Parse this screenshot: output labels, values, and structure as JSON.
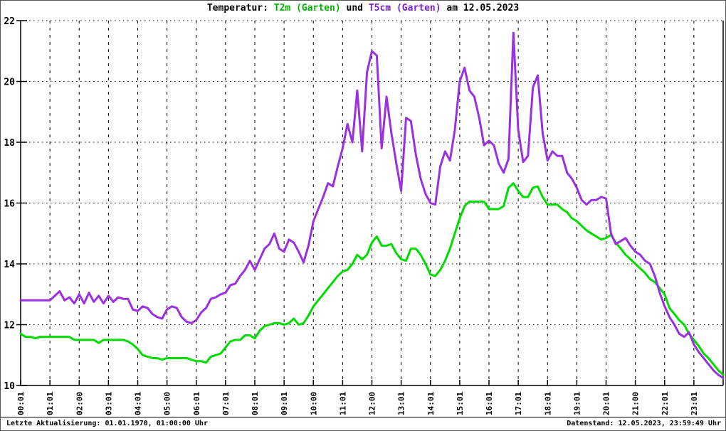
{
  "title": {
    "prefix": "Temperatur: ",
    "series1_label": "T2m (Garten)",
    "mid": " und ",
    "series2_label": "T5cm (Garten)",
    "suffix": " am 12.05.2023"
  },
  "footer": {
    "left": "Letzte Aktualisierung: 01.01.1970, 01:00:00 Uhr",
    "right": "Datenstand: 12.05.2023, 23:59:49 Uhr"
  },
  "colors": {
    "t2m_line": "#00dc00",
    "t5cm_line": "#9a30e0",
    "t2m_title": "#00b400",
    "t5cm_title": "#7a1fd2",
    "axis": "#000000",
    "grid": "#000000",
    "background": "#ffffff"
  },
  "chart_data": {
    "type": "line",
    "title": "Temperatur: T2m (Garten) und T5cm (Garten) am 12.05.2023",
    "date": "12.05.2023",
    "xlabel": "",
    "ylabel": "",
    "ylim": [
      10,
      22
    ],
    "yticks": [
      10,
      12,
      14,
      16,
      18,
      20,
      22
    ],
    "grid": "on",
    "legend_position": "in-title",
    "x_start": "00:00",
    "x_interval_minutes": 10,
    "x_span_hours": 24,
    "xlabels": [
      "00:01",
      "01:01",
      "02:00",
      "03:01",
      "04:01",
      "05:00",
      "06:01",
      "07:01",
      "08:01",
      "09:01",
      "10:00",
      "11:01",
      "12:00",
      "13:01",
      "14:01",
      "15:01",
      "16:01",
      "17:01",
      "18:01",
      "19:01",
      "20:01",
      "21:00",
      "22:01",
      "23:01"
    ],
    "series": [
      {
        "name": "T2m (Garten)",
        "color": "#00dc00",
        "values": [
          11.7,
          11.6,
          11.6,
          11.55,
          11.6,
          11.6,
          11.6,
          11.6,
          11.6,
          11.6,
          11.6,
          11.5,
          11.5,
          11.5,
          11.5,
          11.5,
          11.4,
          11.5,
          11.5,
          11.5,
          11.5,
          11.5,
          11.45,
          11.35,
          11.2,
          11.0,
          10.95,
          10.9,
          10.9,
          10.85,
          10.9,
          10.9,
          10.9,
          10.9,
          10.9,
          10.85,
          10.8,
          10.8,
          10.75,
          10.95,
          11.0,
          11.05,
          11.25,
          11.45,
          11.5,
          11.5,
          11.65,
          11.65,
          11.55,
          11.8,
          11.95,
          12.0,
          12.05,
          12.05,
          12.0,
          12.05,
          12.2,
          12.0,
          12.05,
          12.3,
          12.6,
          12.8,
          13.0,
          13.2,
          13.4,
          13.6,
          13.75,
          13.8,
          14.0,
          14.3,
          14.15,
          14.3,
          14.7,
          14.9,
          14.6,
          14.6,
          14.65,
          14.35,
          14.15,
          14.1,
          14.5,
          14.5,
          14.3,
          14.0,
          13.65,
          13.6,
          13.8,
          14.1,
          14.5,
          15.0,
          15.5,
          15.9,
          16.05,
          16.05,
          16.05,
          16.05,
          15.8,
          15.8,
          15.8,
          15.9,
          16.5,
          16.65,
          16.4,
          16.2,
          16.2,
          16.5,
          16.55,
          16.2,
          15.95,
          15.95,
          15.95,
          15.8,
          15.7,
          15.5,
          15.4,
          15.25,
          15.1,
          15.0,
          14.9,
          14.8,
          14.85,
          14.95,
          14.7,
          14.5,
          14.3,
          14.15,
          14.0,
          13.85,
          13.7,
          13.5,
          13.4,
          13.2,
          13.0,
          12.55,
          12.35,
          12.15,
          12.0,
          11.7,
          11.5,
          11.3,
          11.05,
          10.9,
          10.7,
          10.5,
          10.35
        ]
      },
      {
        "name": "T5cm (Garten)",
        "color": "#9a30e0",
        "values": [
          12.8,
          12.8,
          12.8,
          12.8,
          12.8,
          12.8,
          12.8,
          12.95,
          13.1,
          12.8,
          12.9,
          12.7,
          13.0,
          12.7,
          13.05,
          12.75,
          12.95,
          12.7,
          12.95,
          12.75,
          12.9,
          12.85,
          12.85,
          12.5,
          12.45,
          12.6,
          12.55,
          12.35,
          12.25,
          12.2,
          12.5,
          12.6,
          12.55,
          12.25,
          12.1,
          12.05,
          12.15,
          12.4,
          12.55,
          12.85,
          12.9,
          13.0,
          13.05,
          13.3,
          13.35,
          13.6,
          13.8,
          14.1,
          13.8,
          14.15,
          14.5,
          14.65,
          15.0,
          14.5,
          14.4,
          14.8,
          14.7,
          14.4,
          14.05,
          14.6,
          15.4,
          15.8,
          16.2,
          16.65,
          16.55,
          17.2,
          17.8,
          18.6,
          18.0,
          19.7,
          17.7,
          20.3,
          21.0,
          20.85,
          17.8,
          19.5,
          18.3,
          17.3,
          16.4,
          18.8,
          18.7,
          17.6,
          16.8,
          16.3,
          16.0,
          15.95,
          17.2,
          17.7,
          17.4,
          18.4,
          20.0,
          20.45,
          19.7,
          19.5,
          18.8,
          17.9,
          18.05,
          17.9,
          17.3,
          17.0,
          17.45,
          21.6,
          18.4,
          17.35,
          17.55,
          19.8,
          20.2,
          18.3,
          17.4,
          17.7,
          17.55,
          17.55,
          17.0,
          16.8,
          16.5,
          16.1,
          15.95,
          16.1,
          16.1,
          16.2,
          16.15,
          15.0,
          14.65,
          14.75,
          14.85,
          14.6,
          14.4,
          14.3,
          14.1,
          14.0,
          13.6,
          13.05,
          12.6,
          12.25,
          12.0,
          11.7,
          11.6,
          11.75,
          11.35,
          11.1,
          10.9,
          10.7,
          10.5,
          10.35,
          10.25
        ]
      }
    ]
  }
}
